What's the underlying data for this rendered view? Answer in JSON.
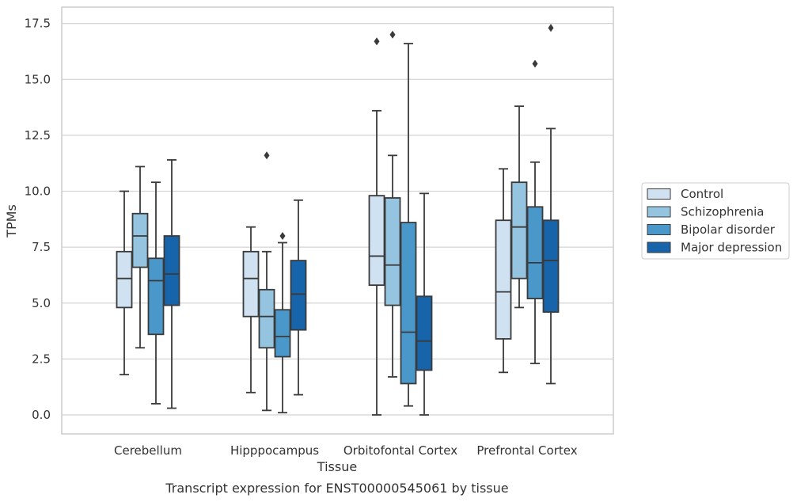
{
  "chart_data": {
    "type": "box",
    "title": "",
    "caption": "Transcript expression for ENST00000545061 by tissue",
    "xlabel": "Tissue",
    "ylabel": "TPMs",
    "ylim": [
      -0.8,
      18.2
    ],
    "yticks": [
      "0.0",
      "2.5",
      "5.0",
      "7.5",
      "10.0",
      "12.5",
      "15.0",
      "17.5"
    ],
    "categories": [
      "Cerebellum",
      "Hipppocampus",
      "Orbitofontal Cortex",
      "Prefrontal Cortex"
    ],
    "grid": "horizontal",
    "legend_position": "right",
    "series": [
      {
        "name": "Control",
        "color": "#d0e1f2",
        "boxes": [
          {
            "whislo": 1.8,
            "q1": 4.8,
            "med": 6.1,
            "q3": 7.3,
            "whishi": 10.0,
            "fliers": []
          },
          {
            "whislo": 1.0,
            "q1": 4.4,
            "med": 6.1,
            "q3": 7.3,
            "whishi": 8.4,
            "fliers": []
          },
          {
            "whislo": 0.0,
            "q1": 5.8,
            "med": 7.1,
            "q3": 9.8,
            "whishi": 13.6,
            "fliers": [
              16.7
            ]
          },
          {
            "whislo": 1.9,
            "q1": 3.4,
            "med": 5.5,
            "q3": 8.7,
            "whishi": 11.0,
            "fliers": []
          }
        ]
      },
      {
        "name": "Schizophrenia",
        "color": "#94c4df",
        "boxes": [
          {
            "whislo": 3.0,
            "q1": 6.6,
            "med": 8.0,
            "q3": 9.0,
            "whishi": 11.1,
            "fliers": []
          },
          {
            "whislo": 0.2,
            "q1": 3.0,
            "med": 4.4,
            "q3": 5.6,
            "whishi": 7.3,
            "fliers": [
              11.6
            ]
          },
          {
            "whislo": 1.7,
            "q1": 4.9,
            "med": 6.7,
            "q3": 9.7,
            "whishi": 11.6,
            "fliers": [
              17.0
            ]
          },
          {
            "whislo": 4.8,
            "q1": 6.1,
            "med": 8.4,
            "q3": 10.4,
            "whishi": 13.8,
            "fliers": []
          }
        ]
      },
      {
        "name": "Bipolar disorder",
        "color": "#4a98c9",
        "boxes": [
          {
            "whislo": 0.5,
            "q1": 3.6,
            "med": 6.0,
            "q3": 7.0,
            "whishi": 10.4,
            "fliers": []
          },
          {
            "whislo": 0.1,
            "q1": 2.6,
            "med": 3.5,
            "q3": 4.7,
            "whishi": 7.7,
            "fliers": [
              8.0
            ]
          },
          {
            "whislo": 0.4,
            "q1": 1.4,
            "med": 3.7,
            "q3": 8.6,
            "whishi": 16.6,
            "fliers": []
          },
          {
            "whislo": 2.3,
            "q1": 5.2,
            "med": 6.8,
            "q3": 9.3,
            "whishi": 11.3,
            "fliers": [
              15.7
            ]
          }
        ]
      },
      {
        "name": "Major depression",
        "color": "#1764ab",
        "boxes": [
          {
            "whislo": 0.3,
            "q1": 4.9,
            "med": 6.3,
            "q3": 8.0,
            "whishi": 11.4,
            "fliers": []
          },
          {
            "whislo": 0.9,
            "q1": 3.8,
            "med": 5.4,
            "q3": 6.9,
            "whishi": 9.6,
            "fliers": []
          },
          {
            "whislo": 0.0,
            "q1": 2.0,
            "med": 3.3,
            "q3": 5.3,
            "whishi": 9.9,
            "fliers": []
          },
          {
            "whislo": 1.4,
            "q1": 4.6,
            "med": 6.9,
            "q3": 8.7,
            "whishi": 12.8,
            "fliers": [
              17.3
            ]
          }
        ]
      }
    ]
  }
}
